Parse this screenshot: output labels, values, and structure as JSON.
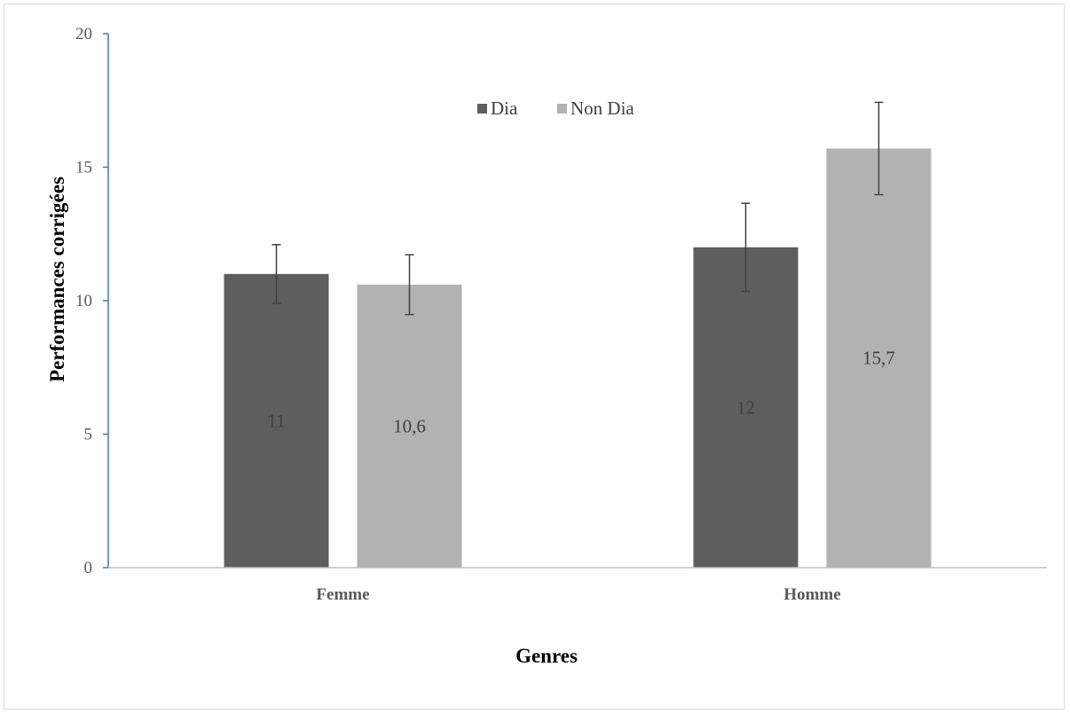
{
  "chart_data": {
    "type": "bar",
    "categories": [
      "Femme",
      "Homme"
    ],
    "series": [
      {
        "name": "Dia",
        "values": [
          11,
          12
        ],
        "errors": [
          1.1,
          1.65
        ],
        "labels": [
          "11",
          "12"
        ],
        "color": "#5e5e5e"
      },
      {
        "name": "Non Dia",
        "values": [
          10.6,
          15.7
        ],
        "errors": [
          1.12,
          1.73
        ],
        "labels": [
          "10,6",
          "15,7"
        ],
        "color": "#b2b2b2"
      }
    ],
    "xlabel": "Genres",
    "ylabel": "Performances corrigées",
    "ylim": [
      0,
      20
    ],
    "yticks": [
      0,
      5,
      10,
      15,
      20
    ],
    "grid": false,
    "legend_position": "top-center",
    "colors": {
      "axis_y": "#4472c4",
      "axis_x": "#bfbfbf",
      "error_bar": "#404040"
    }
  }
}
